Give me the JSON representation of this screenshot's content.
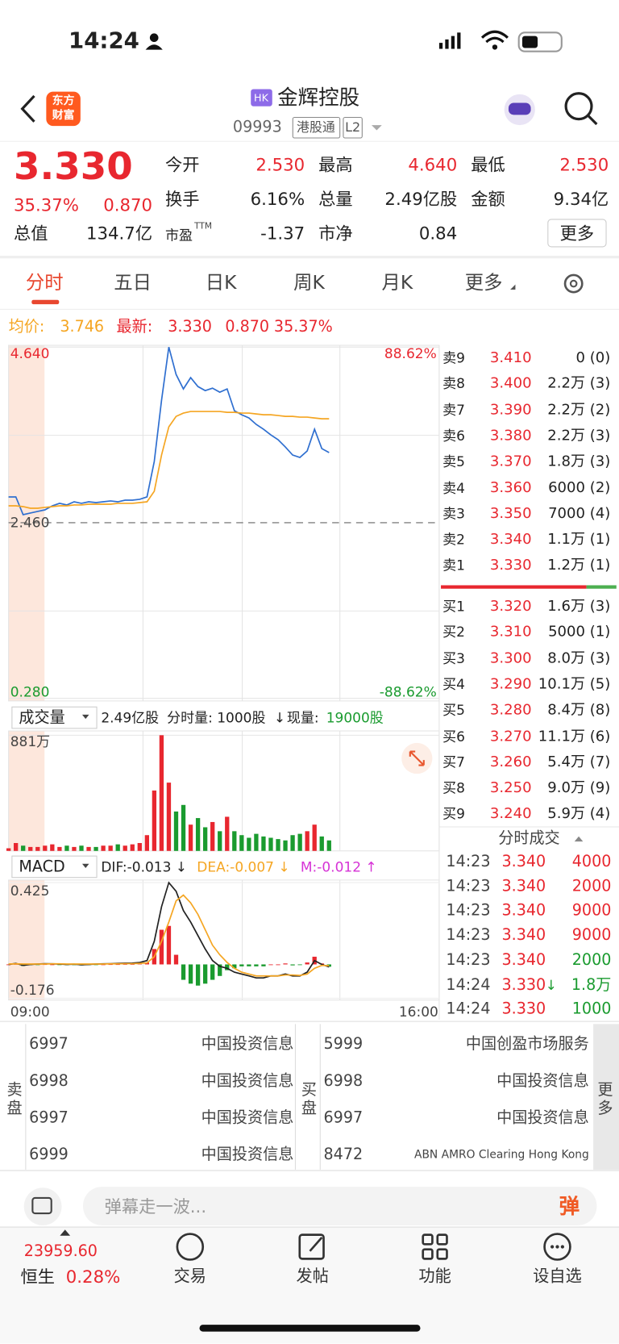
{
  "status": {
    "time": "14:24"
  },
  "header": {
    "logo": [
      "东方",
      "财富"
    ],
    "market": "HK",
    "name": "金辉控股",
    "code": "09993",
    "tags": [
      "港股通",
      "L2"
    ]
  },
  "quote": {
    "price": "3.330",
    "change_pct": "35.37%",
    "change": "0.870",
    "stats": [
      [
        {
          "label": "今开",
          "value": "2.530",
          "color": "#e8272f"
        },
        {
          "label": "最高",
          "value": "4.640",
          "color": "#e8272f"
        },
        {
          "label": "最低",
          "value": "2.530",
          "color": "#e8272f"
        }
      ],
      [
        {
          "label": "换手",
          "value": "6.16%",
          "color": "#222222"
        },
        {
          "label": "总量",
          "value": "2.49亿股",
          "color": "#222222"
        },
        {
          "label": "金额",
          "value": "9.34亿",
          "color": "#222222"
        }
      ],
      [
        {
          "label": "总值",
          "value": "134.7亿",
          "color": "#222222"
        },
        {
          "label": "市盈",
          "sup": "TTM",
          "value": "-1.37",
          "color": "#222222"
        },
        {
          "label": "市净",
          "value": "0.84",
          "color": "#222222"
        }
      ]
    ],
    "more": "更多"
  },
  "tabs": {
    "items": [
      "分时",
      "五日",
      "日K",
      "周K",
      "月K",
      "更多"
    ],
    "active": 0
  },
  "info": {
    "avg_label": "均价:",
    "avg": "3.746",
    "last_label": "最新:",
    "last": "3.330",
    "change": "0.870",
    "pct": "35.37%"
  },
  "intraday": {
    "type": "line",
    "ylim": [
      0.28,
      4.64
    ],
    "yticks": [
      {
        "value": 0.28,
        "label": "0.280"
      },
      {
        "value": 2.46,
        "label": "2.460"
      },
      {
        "value": 4.64,
        "label": "4.640"
      }
    ],
    "tick_colors": [
      "#1a9b2f",
      "#444444",
      "#e8272f"
    ],
    "right_labels": [
      "88.62%",
      "-88.62%"
    ],
    "x_labels": [
      "09:00",
      "16:00"
    ],
    "series": [
      {
        "color": "#2f6fd0",
        "values": [
          2.78,
          2.78,
          2.56,
          2.58,
          2.6,
          2.62,
          2.67,
          2.7,
          2.68,
          2.72,
          2.7,
          2.72,
          2.71,
          2.72,
          2.73,
          2.72,
          2.74,
          2.74,
          2.75,
          2.78,
          3.22,
          3.98,
          4.64,
          4.3,
          4.12,
          4.26,
          4.15,
          4.1,
          4.13,
          4.08,
          4.12,
          3.85,
          3.8,
          3.76,
          3.68,
          3.62,
          3.55,
          3.49,
          3.4,
          3.3,
          3.27,
          3.35,
          3.62,
          3.38,
          3.33,
          null,
          null,
          null,
          null,
          null,
          null,
          null,
          null,
          null,
          null,
          null,
          null,
          null,
          null,
          null
        ]
      },
      {
        "color": "#f5a623",
        "values": [
          2.67,
          2.67,
          2.66,
          2.64,
          2.64,
          2.65,
          2.66,
          2.67,
          2.67,
          2.68,
          2.68,
          2.69,
          2.69,
          2.69,
          2.69,
          2.7,
          2.7,
          2.7,
          2.71,
          2.72,
          2.85,
          3.3,
          3.65,
          3.78,
          3.82,
          3.84,
          3.84,
          3.84,
          3.84,
          3.84,
          3.83,
          3.83,
          3.82,
          3.82,
          3.81,
          3.8,
          3.8,
          3.79,
          3.78,
          3.78,
          3.77,
          3.77,
          3.76,
          3.75,
          3.75,
          null,
          null,
          null,
          null,
          null,
          null,
          null,
          null,
          null,
          null,
          null,
          null,
          null,
          null,
          null
        ]
      }
    ]
  },
  "volume_header": {
    "selector": "成交量",
    "total": "2.49亿股",
    "tick_volume": "分时量: 1000股",
    "arrow": "↓",
    "now_label": "现量:",
    "now": "19000股"
  },
  "volume": {
    "type": "bar",
    "ylim": [
      0,
      881
    ],
    "yticks": [
      {
        "value": 881,
        "label": "881万"
      }
    ],
    "up_color": "#e8272f",
    "down_color": "#1a9b2f",
    "values": [
      20,
      60,
      40,
      30,
      30,
      40,
      50,
      30,
      40,
      30,
      40,
      30,
      30,
      40,
      40,
      50,
      40,
      50,
      60,
      120,
      460,
      881,
      520,
      300,
      350,
      200,
      250,
      180,
      220,
      150,
      260,
      150,
      120,
      100,
      130,
      110,
      100,
      90,
      80,
      120,
      130,
      150,
      200,
      110,
      80,
      null,
      null,
      null,
      null,
      null,
      null,
      null,
      null,
      null,
      null,
      null,
      null,
      null,
      null,
      null
    ]
  },
  "macd_header": {
    "selector": "MACD",
    "dif": "DIF:-0.013 ↓",
    "dea": "DEA:-0.007 ↓",
    "m": "M:-0.012 ↑"
  },
  "macd": {
    "type": "macd",
    "ylim": [
      -0.176,
      0.425
    ],
    "yticks": [
      {
        "value": -0.176,
        "label": "-0.176"
      },
      {
        "value": 0.425,
        "label": "0.425"
      }
    ],
    "series": [
      {
        "color": "#222222",
        "values": [
          0,
          0.005,
          -0.005,
          0,
          0.002,
          0.004,
          0.003,
          0.002,
          0,
          0.001,
          -0.002,
          0,
          0.002,
          0.003,
          0.004,
          0.005,
          0.006,
          0.007,
          0.01,
          0.02,
          0.12,
          0.3,
          0.425,
          0.38,
          0.28,
          0.22,
          0.15,
          0.08,
          0.02,
          -0.01,
          -0.02,
          -0.04,
          -0.05,
          -0.06,
          -0.07,
          -0.07,
          -0.06,
          -0.06,
          -0.05,
          -0.06,
          -0.06,
          -0.04,
          0.02,
          0,
          -0.013,
          null,
          null,
          null,
          null,
          null,
          null,
          null,
          null,
          null,
          null,
          null,
          null,
          null,
          null,
          null
        ]
      },
      {
        "color": "#f5a623",
        "values": [
          0.002,
          0.003,
          0.002,
          0.002,
          0.002,
          0.002,
          0.003,
          0.003,
          0.002,
          0.002,
          0.002,
          0.002,
          0.002,
          0.002,
          0.003,
          0.003,
          0.004,
          0.004,
          0.005,
          0.008,
          0.04,
          0.12,
          0.22,
          0.33,
          0.36,
          0.32,
          0.26,
          0.18,
          0.1,
          0.05,
          0.01,
          -0.02,
          -0.04,
          -0.05,
          -0.06,
          -0.06,
          -0.06,
          -0.06,
          -0.055,
          -0.055,
          -0.057,
          -0.05,
          -0.02,
          -0.005,
          -0.007,
          null,
          null,
          null,
          null,
          null,
          null,
          null,
          null,
          null,
          null,
          null,
          null,
          null,
          null,
          null
        ]
      }
    ],
    "bars": {
      "up_color": "#e8272f",
      "down_color": "#1a9b2f",
      "values": [
        0,
        0.002,
        -0.008,
        -0.003,
        -0.001,
        0.001,
        0,
        -0.001,
        -0.003,
        -0.002,
        -0.005,
        -0.003,
        -0.001,
        0,
        0.001,
        0.001,
        0.002,
        0.002,
        0.004,
        0.01,
        0.08,
        0.18,
        0.2,
        0.05,
        -0.08,
        -0.1,
        -0.11,
        -0.1,
        -0.08,
        -0.06,
        -0.03,
        -0.02,
        -0.01,
        -0.01,
        -0.01,
        -0.01,
        0,
        0,
        0.005,
        -0.005,
        -0.003,
        0.01,
        0.04,
        0.005,
        -0.012,
        null,
        null,
        null,
        null,
        null,
        null,
        null,
        null,
        null,
        null,
        null,
        null,
        null,
        null,
        null
      ]
    }
  },
  "order_book": {
    "asks": [
      [
        "卖9",
        "3.410",
        "0 (0)"
      ],
      [
        "卖8",
        "3.400",
        "2.2万 (3)"
      ],
      [
        "卖7",
        "3.390",
        "2.2万 (2)"
      ],
      [
        "卖6",
        "3.380",
        "2.2万 (3)"
      ],
      [
        "卖5",
        "3.370",
        "1.8万 (3)"
      ],
      [
        "卖4",
        "3.360",
        "6000 (2)"
      ],
      [
        "卖3",
        "3.350",
        "7000 (4)"
      ],
      [
        "卖2",
        "3.340",
        "1.1万 (1)"
      ],
      [
        "卖1",
        "3.330",
        "1.2万 (1)"
      ]
    ],
    "bids": [
      [
        "买1",
        "3.320",
        "1.6万 (3)"
      ],
      [
        "买2",
        "3.310",
        "5000 (1)"
      ],
      [
        "买3",
        "3.300",
        "8.0万 (3)"
      ],
      [
        "买4",
        "3.290",
        "10.1万 (5)"
      ],
      [
        "买5",
        "3.280",
        "8.4万 (8)"
      ],
      [
        "买6",
        "3.270",
        "11.1万 (6)"
      ],
      [
        "买7",
        "3.260",
        "5.4万 (7)"
      ],
      [
        "买8",
        "3.250",
        "9.0万 (9)"
      ],
      [
        "买9",
        "3.240",
        "5.9万 (4)"
      ]
    ]
  },
  "trades": {
    "title": "分时成交",
    "rows": [
      {
        "time": "14:23",
        "price": "3.340",
        "volume": "4000",
        "color": "#e8272f"
      },
      {
        "time": "14:23",
        "price": "3.340",
        "volume": "2000",
        "color": "#e8272f"
      },
      {
        "time": "14:23",
        "price": "3.340",
        "volume": "9000",
        "color": "#e8272f"
      },
      {
        "time": "14:23",
        "price": "3.340",
        "volume": "9000",
        "color": "#e8272f"
      },
      {
        "time": "14:23",
        "price": "3.340",
        "volume": "2000",
        "color": "#1a9b2f"
      },
      {
        "time": "14:24",
        "price": "3.330",
        "arrow": "↓",
        "volume": "1.8万",
        "color": "#1a9b2f"
      },
      {
        "time": "14:24",
        "price": "3.330",
        "volume": "1000",
        "color": "#1a9b2f"
      }
    ]
  },
  "brokers": {
    "sell_label": "卖盘",
    "buy_label": "买盘",
    "more": "更多",
    "sell": [
      [
        "6997",
        "中国投资信息"
      ],
      [
        "6998",
        "中国投资信息"
      ],
      [
        "6997",
        "中国投资信息"
      ],
      [
        "6999",
        "中国投资信息"
      ]
    ],
    "buy": [
      [
        "5999",
        "中国创盈市场服务"
      ],
      [
        "6998",
        "中国投资信息"
      ],
      [
        "6997",
        "中国投资信息"
      ],
      [
        "8472",
        "ABN AMRO Clearing Hong Kong"
      ]
    ]
  },
  "bottom": {
    "danmaku_placeholder": "弹幕走一波...",
    "danmaku_button": "弹",
    "index_value": "23959.60",
    "index_name": "恒生",
    "index_change": "0.28%",
    "tabs": [
      "交易",
      "发帖",
      "功能",
      "设自选"
    ]
  }
}
